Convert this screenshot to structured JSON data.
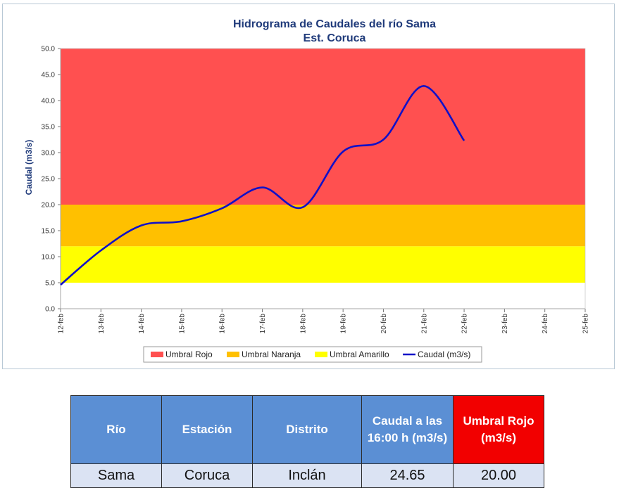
{
  "chart_data": {
    "type": "line",
    "title": "Hidrograma de Caudales del río Sama",
    "subtitle": "Est. Coruca",
    "ylabel": "Caudal (m3/s)",
    "xlabel": "",
    "ylim": [
      0,
      50
    ],
    "yticks": [
      "0.0",
      "5.0",
      "10.0",
      "15.0",
      "20.0",
      "25.0",
      "30.0",
      "35.0",
      "40.0",
      "45.0",
      "50.0"
    ],
    "categories": [
      "12-feb",
      "13-feb",
      "14-feb",
      "15-feb",
      "16-feb",
      "17-feb",
      "18-feb",
      "19-feb",
      "20-feb",
      "21-feb",
      "22-feb",
      "23-feb",
      "24-feb",
      "25-feb"
    ],
    "bands": [
      {
        "name": "Umbral Amarillo",
        "from": 5,
        "to": 12,
        "color": "#ffff00"
      },
      {
        "name": "Umbral Naranja",
        "from": 12,
        "to": 20,
        "color": "#ffc000"
      },
      {
        "name": "Umbral Rojo",
        "from": 20,
        "to": 50,
        "color": "#ff5050"
      }
    ],
    "series": [
      {
        "name": "Caudal (m3/s)",
        "color": "#1010c8",
        "x": [
          0,
          1,
          2,
          3,
          4,
          5,
          6,
          7,
          8,
          9,
          10
        ],
        "values": [
          4.6,
          11.2,
          16.0,
          16.8,
          19.3,
          23.3,
          19.5,
          30.2,
          32.5,
          42.8,
          32.3
        ]
      }
    ],
    "legend": [
      "Umbral Rojo",
      "Umbral Naranja",
      "Umbral Amarillo",
      "Caudal (m3/s)"
    ],
    "legend_position": "bottom"
  },
  "table": {
    "headers": [
      "Río",
      "Estación",
      "Distrito",
      "Caudal a las 16:00 h (m3/s)",
      "Umbral Rojo (m3/s)"
    ],
    "row": [
      "Sama",
      "Coruca",
      "Inclán",
      "24.65",
      "20.00"
    ]
  }
}
